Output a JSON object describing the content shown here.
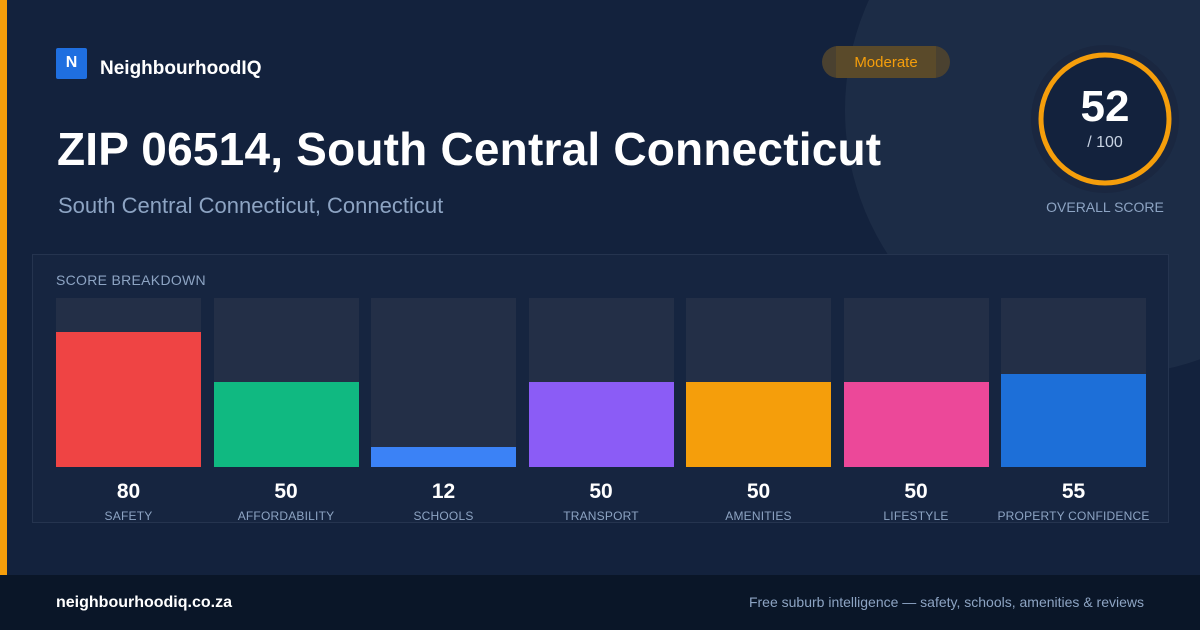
{
  "brand": {
    "logo_letter": "N",
    "name": "NeighbourhoodIQ",
    "logo_color": "#1f6fe0"
  },
  "badge": {
    "label": "Moderate",
    "color": "#f59e0b"
  },
  "header": {
    "title": "ZIP 06514, South Central Connecticut",
    "subtitle": "South Central Connecticut, Connecticut"
  },
  "overall_score": {
    "value": "52",
    "max_label": "/ 100",
    "caption": "OVERALL SCORE",
    "fraction": 0.52,
    "ring_color": "#f59e0b"
  },
  "breakdown": {
    "title": "SCORE BREAKDOWN"
  },
  "chart_data": {
    "type": "bar",
    "categories": [
      "SAFETY",
      "AFFORDABILITY",
      "SCHOOLS",
      "TRANSPORT",
      "AMENITIES",
      "LIFESTYLE",
      "PROPERTY CONFIDENCE"
    ],
    "values": [
      80,
      50,
      12,
      50,
      50,
      50,
      55
    ],
    "value_labels": [
      "80",
      "50",
      "12",
      "50",
      "50",
      "50",
      "55"
    ],
    "colors": [
      "#ef4444",
      "#10b981",
      "#3b82f6",
      "#8b5cf6",
      "#f59e0b",
      "#ec4899",
      "#1d6fd8"
    ],
    "ylim": [
      0,
      100
    ],
    "grid": false
  },
  "footer": {
    "domain": "neighbourhoodiq.co.za",
    "tagline": "Free suburb intelligence — safety, schools, amenities & reviews"
  },
  "colors": {
    "accent": "#f59e0b",
    "background": "#13223d",
    "footer_background": "#0a1628",
    "muted_text": "#8da4c3"
  }
}
